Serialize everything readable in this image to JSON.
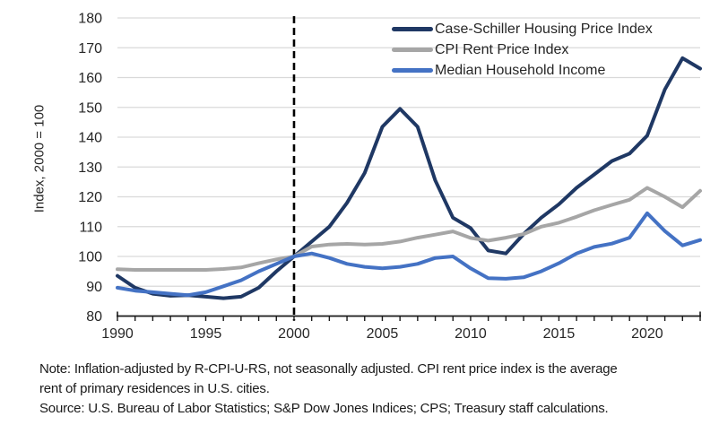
{
  "chart_data": {
    "type": "line",
    "title": "",
    "xlabel": "",
    "ylabel": "Index, 2000 = 100",
    "ylim": [
      80,
      180
    ],
    "y_ticks": [
      80,
      90,
      100,
      110,
      120,
      130,
      140,
      150,
      160,
      170,
      180
    ],
    "x_ticks": [
      1990,
      1995,
      2000,
      2005,
      2010,
      2015,
      2020
    ],
    "x_minor_tick_interval_years": 1,
    "grid": "horizontal",
    "gridline_color": "#d9d9d9",
    "axis_color": "#1a1a1a",
    "text_color": "#262626",
    "legend_position": "top-right-inside",
    "reference_line": {
      "x": 2000,
      "style": "dashed",
      "color": "#000000"
    },
    "years": [
      1990,
      1991,
      1992,
      1993,
      1994,
      1995,
      1996,
      1997,
      1998,
      1999,
      2000,
      2001,
      2002,
      2003,
      2004,
      2005,
      2006,
      2007,
      2008,
      2009,
      2010,
      2011,
      2012,
      2013,
      2014,
      2015,
      2016,
      2017,
      2018,
      2019,
      2020,
      2021,
      2022,
      2023
    ],
    "series": [
      {
        "name": "Case-Schiller Housing Price Index",
        "color": "#1f3864",
        "values": [
          93.5,
          89.5,
          87.5,
          86.8,
          87,
          86.5,
          86,
          86.5,
          89.5,
          95,
          100,
          105,
          110,
          118,
          128,
          143.5,
          149.5,
          143.5,
          125.5,
          113,
          109.5,
          102,
          101,
          107.5,
          113,
          117.5,
          123,
          127.5,
          132,
          134.5,
          140.5,
          156,
          166.5,
          163
        ]
      },
      {
        "name": "CPI Rent Price Index",
        "color": "#a6a6a6",
        "values": [
          95.7,
          95.5,
          95.5,
          95.5,
          95.5,
          95.5,
          95.8,
          96.3,
          97.7,
          99,
          100,
          103.3,
          104,
          104.2,
          104,
          104.2,
          105,
          106.3,
          107.3,
          108.4,
          106.2,
          105.3,
          106.3,
          107.5,
          110,
          111.3,
          113.3,
          115.5,
          117.3,
          119,
          123,
          120,
          116.5,
          122
        ]
      },
      {
        "name": "Median Household Income",
        "color": "#4472c4",
        "values": [
          89.5,
          88.5,
          88,
          87.5,
          87,
          88,
          90,
          92,
          95,
          97.5,
          100,
          101,
          99.5,
          97.5,
          96.5,
          96,
          96.5,
          97.5,
          99.5,
          100,
          96,
          92.7,
          92.5,
          93,
          95,
          97.7,
          101,
          103.2,
          104.3,
          106.3,
          114.5,
          108.5,
          103.7,
          105.5
        ]
      }
    ]
  },
  "footer": {
    "note_line1": "Note: Inflation-adjusted by R-CPI-U-RS, not seasonally adjusted. CPI rent price index is the average",
    "note_line2": "rent of primary residences in U.S. cities.",
    "source_line": "Source: U.S. Bureau of Labor Statistics; S&P Dow Jones Indices; CPS; Treasury staff calculations."
  }
}
